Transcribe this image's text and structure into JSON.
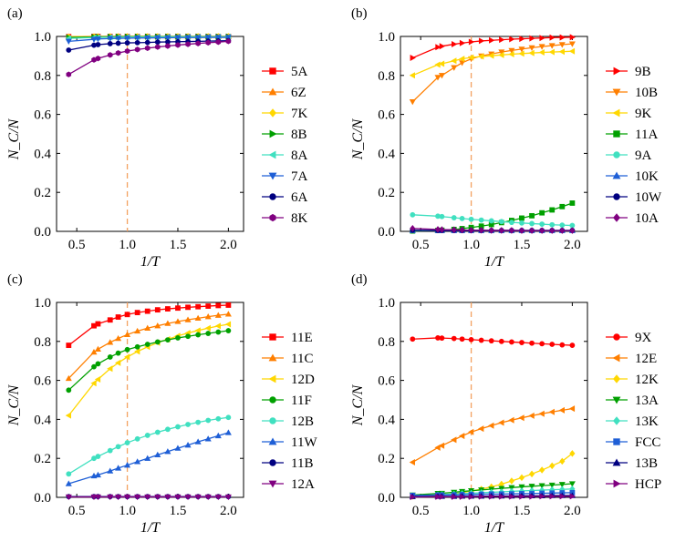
{
  "figure": {
    "background": "#ffffff"
  },
  "chart_data": [
    {
      "panel": "(a)",
      "type": "line",
      "xlabel": "1/T",
      "ylabel": "N_C/N",
      "xlim": [
        0.3,
        2.15
      ],
      "ylim": [
        0,
        1.0
      ],
      "xticks": [
        "0.5",
        "1.0",
        "1.5",
        "2.0"
      ],
      "yticks": [
        "0.0",
        "0.2",
        "0.4",
        "0.6",
        "0.8",
        "1.0"
      ],
      "vline": 1.0,
      "legend_position": "right",
      "x": [
        0.42,
        0.67,
        0.71,
        0.83,
        0.91,
        1.0,
        1.1,
        1.2,
        1.3,
        1.4,
        1.5,
        1.6,
        1.7,
        1.8,
        1.9,
        2.0
      ],
      "series": [
        {
          "name": "5A",
          "color": "#ff0000",
          "marker": "square",
          "values": [
            0.999,
            1.0,
            1.0,
            1.0,
            1.0,
            1.0,
            1.0,
            1.0,
            1.0,
            1.0,
            1.0,
            1.0,
            1.0,
            1.0,
            1.0,
            1.0
          ]
        },
        {
          "name": "6Z",
          "color": "#ff7f00",
          "marker": "triangle-up",
          "values": [
            0.999,
            1.0,
            1.0,
            1.0,
            1.0,
            1.0,
            1.0,
            1.0,
            1.0,
            1.0,
            1.0,
            1.0,
            1.0,
            1.0,
            1.0,
            1.0
          ]
        },
        {
          "name": "7K",
          "color": "#ffd700",
          "marker": "diamond",
          "values": [
            0.998,
            0.999,
            0.999,
            1.0,
            1.0,
            1.0,
            1.0,
            1.0,
            1.0,
            1.0,
            1.0,
            1.0,
            1.0,
            1.0,
            1.0,
            1.0
          ]
        },
        {
          "name": "8B",
          "color": "#00a000",
          "marker": "triangle-right",
          "values": [
            0.995,
            0.997,
            0.998,
            0.998,
            0.999,
            0.999,
            0.999,
            0.999,
            0.999,
            0.999,
            0.999,
            0.999,
            0.999,
            0.999,
            0.999,
            0.999
          ]
        },
        {
          "name": "8A",
          "color": "#40e0c0",
          "marker": "triangle-left",
          "values": [
            0.99,
            0.994,
            0.995,
            0.996,
            0.996,
            0.997,
            0.997,
            0.997,
            0.998,
            0.998,
            0.998,
            0.998,
            0.998,
            0.998,
            0.998,
            0.998
          ]
        },
        {
          "name": "7A",
          "color": "#1f5fd6",
          "marker": "triangle-down",
          "values": [
            0.975,
            0.985,
            0.987,
            0.989,
            0.99,
            0.991,
            0.992,
            0.992,
            0.993,
            0.993,
            0.994,
            0.994,
            0.994,
            0.995,
            0.995,
            0.995
          ]
        },
        {
          "name": "6A",
          "color": "#000080",
          "marker": "circle",
          "values": [
            0.93,
            0.955,
            0.958,
            0.963,
            0.965,
            0.967,
            0.968,
            0.969,
            0.971,
            0.972,
            0.973,
            0.974,
            0.975,
            0.976,
            0.977,
            0.978
          ]
        },
        {
          "name": "8K",
          "color": "#800080",
          "marker": "hexagon",
          "values": [
            0.805,
            0.88,
            0.887,
            0.905,
            0.915,
            0.925,
            0.933,
            0.94,
            0.946,
            0.951,
            0.956,
            0.96,
            0.964,
            0.968,
            0.971,
            0.975
          ]
        }
      ]
    },
    {
      "panel": "(b)",
      "type": "line",
      "xlabel": "1/T",
      "ylabel": "N_C/N",
      "xlim": [
        0.3,
        2.15
      ],
      "ylim": [
        0,
        1.0
      ],
      "xticks": [
        "0.5",
        "1.0",
        "1.5",
        "2.0"
      ],
      "yticks": [
        "0.0",
        "0.2",
        "0.4",
        "0.6",
        "0.8",
        "1.0"
      ],
      "vline": 1.0,
      "legend_position": "right",
      "x": [
        0.42,
        0.67,
        0.71,
        0.83,
        0.91,
        1.0,
        1.1,
        1.2,
        1.3,
        1.4,
        1.5,
        1.6,
        1.7,
        1.8,
        1.9,
        2.0
      ],
      "series": [
        {
          "name": "9B",
          "color": "#ff0000",
          "marker": "triangle-right",
          "values": [
            0.89,
            0.945,
            0.95,
            0.96,
            0.966,
            0.972,
            0.977,
            0.98,
            0.983,
            0.986,
            0.988,
            0.99,
            0.992,
            0.994,
            0.995,
            0.996
          ]
        },
        {
          "name": "10B",
          "color": "#ff7f00",
          "marker": "triangle-down",
          "values": [
            0.665,
            0.79,
            0.8,
            0.84,
            0.865,
            0.885,
            0.9,
            0.91,
            0.92,
            0.928,
            0.935,
            0.942,
            0.948,
            0.953,
            0.958,
            0.962
          ]
        },
        {
          "name": "9K",
          "color": "#ffd700",
          "marker": "triangle-left",
          "values": [
            0.8,
            0.855,
            0.86,
            0.875,
            0.885,
            0.892,
            0.897,
            0.901,
            0.905,
            0.909,
            0.912,
            0.915,
            0.918,
            0.92,
            0.922,
            0.924
          ]
        },
        {
          "name": "11A",
          "color": "#00a000",
          "marker": "square",
          "values": [
            0.002,
            0.005,
            0.006,
            0.01,
            0.014,
            0.02,
            0.027,
            0.035,
            0.045,
            0.056,
            0.068,
            0.08,
            0.095,
            0.11,
            0.127,
            0.145
          ]
        },
        {
          "name": "9A",
          "color": "#40e0c0",
          "marker": "circle",
          "values": [
            0.085,
            0.078,
            0.076,
            0.07,
            0.066,
            0.062,
            0.058,
            0.054,
            0.05,
            0.046,
            0.043,
            0.04,
            0.037,
            0.034,
            0.032,
            0.03
          ]
        },
        {
          "name": "10K",
          "color": "#1f5fd6",
          "marker": "triangle-up",
          "values": [
            0.004,
            0.004,
            0.004,
            0.004,
            0.004,
            0.004,
            0.004,
            0.004,
            0.004,
            0.004,
            0.004,
            0.004,
            0.004,
            0.004,
            0.004,
            0.004
          ]
        },
        {
          "name": "10W",
          "color": "#000080",
          "marker": "circle",
          "values": [
            0.006,
            0.005,
            0.005,
            0.005,
            0.005,
            0.005,
            0.005,
            0.005,
            0.005,
            0.005,
            0.005,
            0.005,
            0.005,
            0.005,
            0.005,
            0.005
          ]
        },
        {
          "name": "10A",
          "color": "#800080",
          "marker": "diamond",
          "values": [
            0.015,
            0.01,
            0.009,
            0.008,
            0.007,
            0.006,
            0.006,
            0.005,
            0.005,
            0.005,
            0.004,
            0.004,
            0.004,
            0.004,
            0.004,
            0.004
          ]
        }
      ]
    },
    {
      "panel": "(c)",
      "type": "line",
      "xlabel": "1/T",
      "ylabel": "N_C/N",
      "xlim": [
        0.3,
        2.15
      ],
      "ylim": [
        0,
        1.0
      ],
      "xticks": [
        "0.5",
        "1.0",
        "1.5",
        "2.0"
      ],
      "yticks": [
        "0.0",
        "0.2",
        "0.4",
        "0.6",
        "0.8",
        "1.0"
      ],
      "vline": 1.0,
      "legend_position": "right",
      "x": [
        0.42,
        0.67,
        0.71,
        0.83,
        0.91,
        1.0,
        1.1,
        1.2,
        1.3,
        1.4,
        1.5,
        1.6,
        1.7,
        1.8,
        1.9,
        2.0
      ],
      "series": [
        {
          "name": "11E",
          "color": "#ff0000",
          "marker": "square",
          "values": [
            0.78,
            0.88,
            0.89,
            0.91,
            0.925,
            0.938,
            0.948,
            0.955,
            0.962,
            0.967,
            0.971,
            0.975,
            0.978,
            0.981,
            0.984,
            0.986
          ]
        },
        {
          "name": "11C",
          "color": "#ff7f00",
          "marker": "triangle-up",
          "values": [
            0.61,
            0.745,
            0.76,
            0.795,
            0.815,
            0.835,
            0.853,
            0.868,
            0.88,
            0.892,
            0.902,
            0.911,
            0.919,
            0.927,
            0.934,
            0.94
          ]
        },
        {
          "name": "12D",
          "color": "#ffd700",
          "marker": "triangle-left",
          "values": [
            0.42,
            0.585,
            0.605,
            0.66,
            0.69,
            0.72,
            0.748,
            0.772,
            0.793,
            0.811,
            0.828,
            0.843,
            0.856,
            0.868,
            0.879,
            0.888
          ]
        },
        {
          "name": "11F",
          "color": "#00a000",
          "marker": "circle",
          "values": [
            0.55,
            0.67,
            0.685,
            0.72,
            0.74,
            0.758,
            0.772,
            0.785,
            0.797,
            0.808,
            0.818,
            0.826,
            0.834,
            0.841,
            0.848,
            0.855
          ]
        },
        {
          "name": "12B",
          "color": "#40e0c0",
          "marker": "circle",
          "values": [
            0.12,
            0.2,
            0.21,
            0.24,
            0.26,
            0.28,
            0.3,
            0.318,
            0.334,
            0.349,
            0.362,
            0.374,
            0.385,
            0.395,
            0.403,
            0.41
          ]
        },
        {
          "name": "11W",
          "color": "#1f5fd6",
          "marker": "triangle-up",
          "values": [
            0.07,
            0.11,
            0.115,
            0.135,
            0.15,
            0.165,
            0.183,
            0.2,
            0.218,
            0.235,
            0.252,
            0.268,
            0.285,
            0.3,
            0.316,
            0.332
          ]
        },
        {
          "name": "11B",
          "color": "#000080",
          "marker": "circle",
          "values": [
            0.004,
            0.004,
            0.004,
            0.004,
            0.004,
            0.004,
            0.004,
            0.004,
            0.004,
            0.004,
            0.004,
            0.004,
            0.004,
            0.004,
            0.004,
            0.004
          ]
        },
        {
          "name": "12A",
          "color": "#800080",
          "marker": "triangle-down",
          "values": [
            0.002,
            0.002,
            0.002,
            0.002,
            0.002,
            0.002,
            0.002,
            0.002,
            0.002,
            0.002,
            0.002,
            0.002,
            0.002,
            0.002,
            0.002,
            0.002
          ]
        }
      ]
    },
    {
      "panel": "(d)",
      "type": "line",
      "xlabel": "1/T",
      "ylabel": "N_C/N",
      "xlim": [
        0.3,
        2.15
      ],
      "ylim": [
        0,
        1.0
      ],
      "xticks": [
        "0.5",
        "1.0",
        "1.5",
        "2.0"
      ],
      "yticks": [
        "0.0",
        "0.2",
        "0.4",
        "0.6",
        "0.8",
        "1.0"
      ],
      "vline": 1.0,
      "legend_position": "right",
      "x": [
        0.42,
        0.67,
        0.71,
        0.83,
        0.91,
        1.0,
        1.1,
        1.2,
        1.3,
        1.4,
        1.5,
        1.6,
        1.7,
        1.8,
        1.9,
        2.0
      ],
      "series": [
        {
          "name": "9X",
          "color": "#ff0000",
          "marker": "circle",
          "values": [
            0.812,
            0.818,
            0.817,
            0.815,
            0.812,
            0.809,
            0.806,
            0.803,
            0.8,
            0.797,
            0.794,
            0.791,
            0.788,
            0.785,
            0.782,
            0.78
          ]
        },
        {
          "name": "12E",
          "color": "#ff7f00",
          "marker": "triangle-left",
          "values": [
            0.18,
            0.255,
            0.265,
            0.295,
            0.315,
            0.335,
            0.352,
            0.368,
            0.383,
            0.396,
            0.408,
            0.419,
            0.429,
            0.438,
            0.447,
            0.455
          ]
        },
        {
          "name": "12K",
          "color": "#ffd700",
          "marker": "diamond",
          "values": [
            0.005,
            0.01,
            0.012,
            0.018,
            0.024,
            0.032,
            0.042,
            0.054,
            0.068,
            0.084,
            0.101,
            0.12,
            0.14,
            0.162,
            0.185,
            0.225
          ]
        },
        {
          "name": "13A",
          "color": "#00a000",
          "marker": "triangle-down",
          "values": [
            0.012,
            0.02,
            0.021,
            0.026,
            0.03,
            0.034,
            0.038,
            0.042,
            0.046,
            0.05,
            0.054,
            0.057,
            0.06,
            0.063,
            0.066,
            0.07
          ]
        },
        {
          "name": "13K",
          "color": "#40e0c0",
          "marker": "diamond",
          "values": [
            0.008,
            0.013,
            0.014,
            0.017,
            0.019,
            0.021,
            0.024,
            0.026,
            0.028,
            0.031,
            0.033,
            0.035,
            0.037,
            0.039,
            0.041,
            0.043
          ]
        },
        {
          "name": "FCC",
          "color": "#1f5fd6",
          "marker": "square",
          "values": [
            0.01,
            0.012,
            0.012,
            0.013,
            0.014,
            0.015,
            0.016,
            0.017,
            0.017,
            0.018,
            0.019,
            0.02,
            0.021,
            0.022,
            0.023,
            0.024
          ]
        },
        {
          "name": "13B",
          "color": "#000080",
          "marker": "triangle-up",
          "values": [
            0.004,
            0.005,
            0.005,
            0.005,
            0.006,
            0.006,
            0.006,
            0.007,
            0.007,
            0.007,
            0.008,
            0.008,
            0.008,
            0.009,
            0.009,
            0.009
          ]
        },
        {
          "name": "HCP",
          "color": "#800080",
          "marker": "triangle-right",
          "values": [
            0.002,
            0.003,
            0.003,
            0.003,
            0.003,
            0.003,
            0.004,
            0.004,
            0.004,
            0.004,
            0.004,
            0.004,
            0.005,
            0.005,
            0.005,
            0.005
          ]
        }
      ]
    }
  ]
}
